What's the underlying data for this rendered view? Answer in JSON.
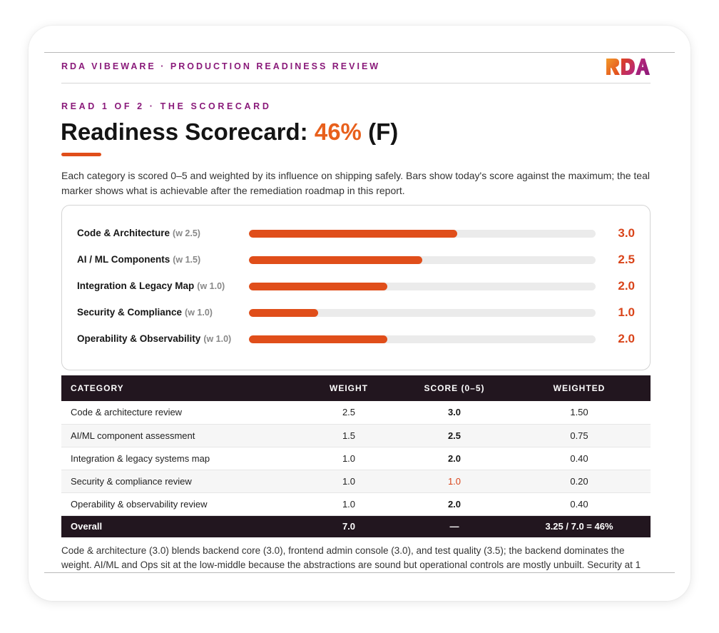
{
  "header": {
    "brand_line": "RDA VIBEWARE · PRODUCTION READINESS REVIEW",
    "logo_text": "RDA"
  },
  "kicker": "READ 1 OF 2 · THE SCORECARD",
  "title": {
    "prefix": "Readiness Scorecard: ",
    "percent": "46%",
    "grade": " (F)"
  },
  "intro": "Each category is scored 0–5 and weighted by its influence on shipping safely. Bars show today's score against the maximum; the teal marker shows what is achievable after the remediation roadmap in this report.",
  "bars": [
    {
      "label": "Code & Architecture",
      "weight": "(w 2.5)",
      "score": 3.0,
      "value": "3.0"
    },
    {
      "label": "AI / ML Components",
      "weight": "(w 1.5)",
      "score": 2.5,
      "value": "2.5"
    },
    {
      "label": "Integration & Legacy Map",
      "weight": "(w 1.0)",
      "score": 2.0,
      "value": "2.0"
    },
    {
      "label": "Security & Compliance",
      "weight": "(w 1.0)",
      "score": 1.0,
      "value": "1.0"
    },
    {
      "label": "Operability & Observability",
      "weight": "(w 1.0)",
      "score": 2.0,
      "value": "2.0"
    }
  ],
  "bar_max": 5,
  "table": {
    "headers": [
      "CATEGORY",
      "WEIGHT",
      "SCORE (0–5)",
      "WEIGHTED"
    ],
    "rows": [
      {
        "category": "Code & architecture review",
        "weight": "2.5",
        "score": "3.0",
        "weighted": "1.50"
      },
      {
        "category": "AI/ML component assessment",
        "weight": "1.5",
        "score": "2.5",
        "weighted": "0.75"
      },
      {
        "category": "Integration & legacy systems map",
        "weight": "1.0",
        "score": "2.0",
        "weighted": "0.40"
      },
      {
        "category": "Security & compliance review",
        "weight": "1.0",
        "score": "1.0",
        "weighted": "0.20"
      },
      {
        "category": "Operability & observability review",
        "weight": "1.0",
        "score": "2.0",
        "weighted": "0.40"
      }
    ],
    "total": {
      "category": "Overall",
      "weight": "7.0",
      "score": "—",
      "weighted": "3.25 / 7.0 = 46%"
    }
  },
  "footnote": "Code & architecture (3.0) blends backend core (3.0), frontend admin console (3.0), and test quality (3.5); the backend dominates the weight. AI/ML and Ops sit at the low-middle because the abstractions are sound but operational controls are mostly unbuilt. Security at 1",
  "colors": {
    "accent_orange": "#e04e1a",
    "brand_purple": "#8a1a7a",
    "table_header": "#22161f"
  }
}
